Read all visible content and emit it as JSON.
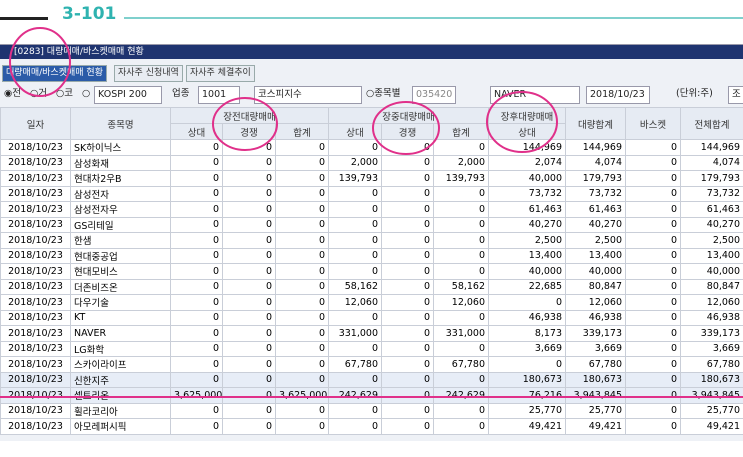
{
  "header": {
    "section": "3-101"
  },
  "window": {
    "title": "[0283] 대량매매/바스켓매매 현황",
    "tabs": [
      "대량매매/바스켓매매 현황",
      "자사주 신청내역",
      "자사주 체결추이"
    ]
  },
  "toolbar": {
    "radios": [
      "전",
      "거",
      "코"
    ],
    "index": "KOSPI 200",
    "sector_label": "업종",
    "sector_code": "1001",
    "sector_name": "코스피지수",
    "by_stock": "종목별",
    "stock_code": "035420",
    "stock_name": "NAVER",
    "date": "2018/10/23",
    "unit": "(단위:주)",
    "button": "조"
  },
  "table": {
    "header_top": [
      "일자",
      "종목명",
      "장전대량매매",
      "장중대량매매",
      "장후대량매매",
      "대량합계",
      "바스켓",
      "전체합계"
    ],
    "header_sub": [
      "상대",
      "경쟁",
      "합계",
      "상대",
      "경쟁",
      "합계",
      "상대"
    ],
    "rows": [
      [
        "2018/10/23",
        "SK하이닉스",
        "0",
        "0",
        "0",
        "0",
        "0",
        "0",
        "144,969",
        "144,969",
        "0",
        "144,969"
      ],
      [
        "2018/10/23",
        "삼성화재",
        "0",
        "0",
        "0",
        "2,000",
        "0",
        "2,000",
        "2,074",
        "4,074",
        "0",
        "4,074"
      ],
      [
        "2018/10/23",
        "현대차2우B",
        "0",
        "0",
        "0",
        "139,793",
        "0",
        "139,793",
        "40,000",
        "179,793",
        "0",
        "179,793"
      ],
      [
        "2018/10/23",
        "삼성전자",
        "0",
        "0",
        "0",
        "0",
        "0",
        "0",
        "73,732",
        "73,732",
        "0",
        "73,732"
      ],
      [
        "2018/10/23",
        "삼성전자우",
        "0",
        "0",
        "0",
        "0",
        "0",
        "0",
        "61,463",
        "61,463",
        "0",
        "61,463"
      ],
      [
        "2018/10/23",
        "GS리테일",
        "0",
        "0",
        "0",
        "0",
        "0",
        "0",
        "40,270",
        "40,270",
        "0",
        "40,270"
      ],
      [
        "2018/10/23",
        "한샘",
        "0",
        "0",
        "0",
        "0",
        "0",
        "0",
        "2,500",
        "2,500",
        "0",
        "2,500"
      ],
      [
        "2018/10/23",
        "현대중공업",
        "0",
        "0",
        "0",
        "0",
        "0",
        "0",
        "13,400",
        "13,400",
        "0",
        "13,400"
      ],
      [
        "2018/10/23",
        "현대모비스",
        "0",
        "0",
        "0",
        "0",
        "0",
        "0",
        "40,000",
        "40,000",
        "0",
        "40,000"
      ],
      [
        "2018/10/23",
        "더존비즈온",
        "0",
        "0",
        "0",
        "58,162",
        "0",
        "58,162",
        "22,685",
        "80,847",
        "0",
        "80,847"
      ],
      [
        "2018/10/23",
        "다우기술",
        "0",
        "0",
        "0",
        "12,060",
        "0",
        "12,060",
        "0",
        "12,060",
        "0",
        "12,060"
      ],
      [
        "2018/10/23",
        "KT",
        "0",
        "0",
        "0",
        "0",
        "0",
        "0",
        "46,938",
        "46,938",
        "0",
        "46,938"
      ],
      [
        "2018/10/23",
        "NAVER",
        "0",
        "0",
        "0",
        "331,000",
        "0",
        "331,000",
        "8,173",
        "339,173",
        "0",
        "339,173"
      ],
      [
        "2018/10/23",
        "LG화학",
        "0",
        "0",
        "0",
        "0",
        "0",
        "0",
        "3,669",
        "3,669",
        "0",
        "3,669"
      ],
      [
        "2018/10/23",
        "스카이라이프",
        "0",
        "0",
        "0",
        "67,780",
        "0",
        "67,780",
        "0",
        "67,780",
        "0",
        "67,780"
      ],
      [
        "2018/10/23",
        "신한지주",
        "0",
        "0",
        "0",
        "0",
        "0",
        "0",
        "180,673",
        "180,673",
        "0",
        "180,673"
      ],
      [
        "2018/10/23",
        "셀트리온",
        "3,625,000",
        "0",
        "3,625,000",
        "242,629",
        "0",
        "242,629",
        "76,216",
        "3,943,845",
        "0",
        "3,943,845"
      ],
      [
        "2018/10/23",
        "휠라코리아",
        "0",
        "0",
        "0",
        "0",
        "0",
        "0",
        "25,770",
        "25,770",
        "0",
        "25,770"
      ],
      [
        "2018/10/23",
        "아모레퍼시픽",
        "0",
        "0",
        "0",
        "0",
        "0",
        "0",
        "49,421",
        "49,421",
        "0",
        "49,421"
      ]
    ]
  }
}
